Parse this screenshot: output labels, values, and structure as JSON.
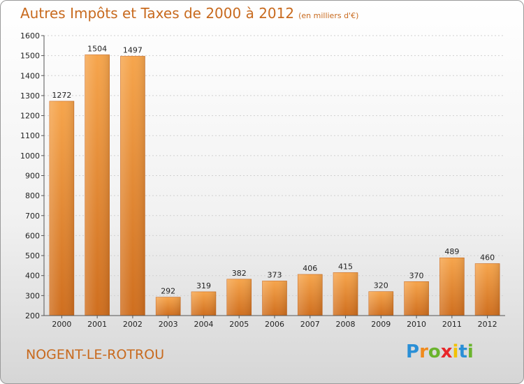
{
  "title": "Autres Impôts et Taxes de 2000 à 2012",
  "unit_label": "(en milliers d'€)",
  "commune": "NOGENT-LE-ROTROU",
  "logo": {
    "letters": [
      "P",
      "r",
      "o",
      "x",
      "i",
      "t",
      "i"
    ],
    "colors": [
      "#2a8fd6",
      "#f08a1c",
      "#6ab42d",
      "#e8262a",
      "#f2c200",
      "#2a8fd6",
      "#6ab42d"
    ]
  },
  "colors": {
    "bar": "#f0932e",
    "bar_dark": "#c8661c",
    "text_accent": "#c86a1e"
  },
  "chart_data": {
    "type": "bar",
    "categories": [
      "2000",
      "2001",
      "2002",
      "2003",
      "2004",
      "2005",
      "2006",
      "2007",
      "2008",
      "2009",
      "2010",
      "2011",
      "2012"
    ],
    "values": [
      1272,
      1504,
      1497,
      292,
      319,
      382,
      373,
      406,
      415,
      320,
      370,
      489,
      460
    ],
    "ylim": [
      200,
      1600
    ],
    "yticks": [
      200,
      300,
      400,
      500,
      600,
      700,
      800,
      900,
      1000,
      1100,
      1200,
      1300,
      1400,
      1500,
      1600
    ],
    "grid": true,
    "legend": "none"
  }
}
